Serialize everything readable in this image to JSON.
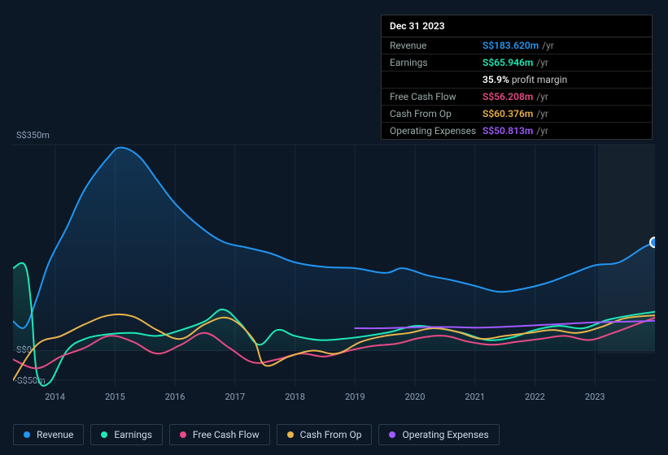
{
  "chart": {
    "type": "line-area",
    "background_color": "#0d1826",
    "gridline_color": "#1a2838",
    "currency_prefix": "S$",
    "x_axis": {
      "years": [
        "2014",
        "2015",
        "2016",
        "2017",
        "2018",
        "2019",
        "2020",
        "2021",
        "2022",
        "2023"
      ],
      "start_year": 2013.3,
      "end_year": 2024.0,
      "fontsize": 11,
      "label_color": "#8ea2b8"
    },
    "y_axis": {
      "ticks": [
        {
          "value": 350,
          "label": "S$350m"
        },
        {
          "value": 0,
          "label": "S$0"
        },
        {
          "value": -50,
          "label": "-S$50m"
        }
      ],
      "min": -60,
      "max": 350,
      "fontsize": 11,
      "label_color": "#8ea2b8"
    },
    "series": [
      {
        "key": "revenue",
        "label": "Revenue",
        "color": "#2196f3",
        "line_width": 2,
        "area_fill": true,
        "area_opacity_top": 0.22,
        "area_opacity_bottom": 0.02,
        "points": [
          {
            "x": 2013.3,
            "y": 50
          },
          {
            "x": 2013.5,
            "y": 40
          },
          {
            "x": 2013.7,
            "y": 90
          },
          {
            "x": 2013.9,
            "y": 150
          },
          {
            "x": 2014.2,
            "y": 210
          },
          {
            "x": 2014.5,
            "y": 275
          },
          {
            "x": 2014.9,
            "y": 330
          },
          {
            "x": 2015.1,
            "y": 345
          },
          {
            "x": 2015.4,
            "y": 330
          },
          {
            "x": 2015.7,
            "y": 290
          },
          {
            "x": 2016.0,
            "y": 250
          },
          {
            "x": 2016.4,
            "y": 212
          },
          {
            "x": 2016.8,
            "y": 185
          },
          {
            "x": 2017.2,
            "y": 175
          },
          {
            "x": 2017.6,
            "y": 165
          },
          {
            "x": 2018.0,
            "y": 150
          },
          {
            "x": 2018.5,
            "y": 142
          },
          {
            "x": 2019.0,
            "y": 140
          },
          {
            "x": 2019.5,
            "y": 132
          },
          {
            "x": 2019.8,
            "y": 140
          },
          {
            "x": 2020.2,
            "y": 128
          },
          {
            "x": 2020.6,
            "y": 120
          },
          {
            "x": 2021.0,
            "y": 110
          },
          {
            "x": 2021.4,
            "y": 100
          },
          {
            "x": 2021.8,
            "y": 105
          },
          {
            "x": 2022.2,
            "y": 115
          },
          {
            "x": 2022.6,
            "y": 130
          },
          {
            "x": 2023.0,
            "y": 145
          },
          {
            "x": 2023.4,
            "y": 150
          },
          {
            "x": 2023.8,
            "y": 175
          },
          {
            "x": 2024.0,
            "y": 184
          }
        ]
      },
      {
        "key": "earnings",
        "label": "Earnings",
        "color": "#1de9b6",
        "line_width": 2,
        "area_fill": true,
        "area_opacity_top": 0.18,
        "area_opacity_bottom": 0.0,
        "points": [
          {
            "x": 2013.3,
            "y": 140
          },
          {
            "x": 2013.5,
            "y": 145
          },
          {
            "x": 2013.6,
            "y": 80
          },
          {
            "x": 2013.7,
            "y": -40
          },
          {
            "x": 2013.9,
            "y": -55
          },
          {
            "x": 2014.2,
            "y": 0
          },
          {
            "x": 2014.5,
            "y": 20
          },
          {
            "x": 2014.9,
            "y": 28
          },
          {
            "x": 2015.3,
            "y": 30
          },
          {
            "x": 2015.7,
            "y": 25
          },
          {
            "x": 2016.1,
            "y": 35
          },
          {
            "x": 2016.5,
            "y": 50
          },
          {
            "x": 2016.8,
            "y": 70
          },
          {
            "x": 2017.1,
            "y": 45
          },
          {
            "x": 2017.4,
            "y": 10
          },
          {
            "x": 2017.7,
            "y": 35
          },
          {
            "x": 2018.0,
            "y": 25
          },
          {
            "x": 2018.4,
            "y": 18
          },
          {
            "x": 2018.8,
            "y": 20
          },
          {
            "x": 2019.2,
            "y": 25
          },
          {
            "x": 2019.6,
            "y": 32
          },
          {
            "x": 2020.0,
            "y": 42
          },
          {
            "x": 2020.4,
            "y": 38
          },
          {
            "x": 2020.8,
            "y": 30
          },
          {
            "x": 2021.2,
            "y": 18
          },
          {
            "x": 2021.6,
            "y": 22
          },
          {
            "x": 2022.0,
            "y": 35
          },
          {
            "x": 2022.4,
            "y": 42
          },
          {
            "x": 2022.8,
            "y": 38
          },
          {
            "x": 2023.2,
            "y": 52
          },
          {
            "x": 2023.6,
            "y": 60
          },
          {
            "x": 2024.0,
            "y": 66
          }
        ]
      },
      {
        "key": "fcf",
        "label": "Free Cash Flow",
        "color": "#e94b86",
        "line_width": 2,
        "area_fill": false,
        "points": [
          {
            "x": 2013.3,
            "y": -15
          },
          {
            "x": 2013.7,
            "y": -30
          },
          {
            "x": 2014.1,
            "y": -10
          },
          {
            "x": 2014.5,
            "y": 5
          },
          {
            "x": 2014.9,
            "y": 25
          },
          {
            "x": 2015.3,
            "y": 15
          },
          {
            "x": 2015.7,
            "y": -5
          },
          {
            "x": 2016.1,
            "y": 10
          },
          {
            "x": 2016.5,
            "y": 30
          },
          {
            "x": 2016.9,
            "y": 5
          },
          {
            "x": 2017.3,
            "y": -20
          },
          {
            "x": 2017.7,
            "y": -15
          },
          {
            "x": 2018.1,
            "y": -5
          },
          {
            "x": 2018.5,
            "y": -10
          },
          {
            "x": 2018.9,
            "y": 0
          },
          {
            "x": 2019.3,
            "y": 8
          },
          {
            "x": 2019.7,
            "y": 12
          },
          {
            "x": 2020.1,
            "y": 22
          },
          {
            "x": 2020.5,
            "y": 25
          },
          {
            "x": 2020.9,
            "y": 15
          },
          {
            "x": 2021.3,
            "y": 10
          },
          {
            "x": 2021.7,
            "y": 15
          },
          {
            "x": 2022.1,
            "y": 20
          },
          {
            "x": 2022.5,
            "y": 25
          },
          {
            "x": 2022.9,
            "y": 18
          },
          {
            "x": 2023.3,
            "y": 30
          },
          {
            "x": 2023.7,
            "y": 45
          },
          {
            "x": 2024.0,
            "y": 56
          }
        ]
      },
      {
        "key": "cfo",
        "label": "Cash From Op",
        "color": "#e9b34b",
        "line_width": 2,
        "area_fill": false,
        "points": [
          {
            "x": 2013.3,
            "y": -50
          },
          {
            "x": 2013.7,
            "y": 10
          },
          {
            "x": 2014.1,
            "y": 25
          },
          {
            "x": 2014.5,
            "y": 45
          },
          {
            "x": 2014.9,
            "y": 60
          },
          {
            "x": 2015.3,
            "y": 58
          },
          {
            "x": 2015.7,
            "y": 35
          },
          {
            "x": 2016.1,
            "y": 20
          },
          {
            "x": 2016.5,
            "y": 45
          },
          {
            "x": 2016.9,
            "y": 55
          },
          {
            "x": 2017.3,
            "y": 20
          },
          {
            "x": 2017.5,
            "y": -25
          },
          {
            "x": 2017.9,
            "y": -10
          },
          {
            "x": 2018.3,
            "y": 0
          },
          {
            "x": 2018.7,
            "y": -5
          },
          {
            "x": 2019.1,
            "y": 15
          },
          {
            "x": 2019.5,
            "y": 25
          },
          {
            "x": 2019.9,
            "y": 30
          },
          {
            "x": 2020.3,
            "y": 38
          },
          {
            "x": 2020.7,
            "y": 32
          },
          {
            "x": 2021.1,
            "y": 20
          },
          {
            "x": 2021.5,
            "y": 25
          },
          {
            "x": 2021.9,
            "y": 30
          },
          {
            "x": 2022.3,
            "y": 35
          },
          {
            "x": 2022.7,
            "y": 30
          },
          {
            "x": 2023.1,
            "y": 40
          },
          {
            "x": 2023.5,
            "y": 55
          },
          {
            "x": 2024.0,
            "y": 60
          }
        ]
      },
      {
        "key": "opex",
        "label": "Operating Expenses",
        "color": "#a259ff",
        "line_width": 2,
        "area_fill": false,
        "points": [
          {
            "x": 2019.0,
            "y": 38
          },
          {
            "x": 2019.4,
            "y": 38
          },
          {
            "x": 2019.8,
            "y": 39
          },
          {
            "x": 2020.2,
            "y": 40
          },
          {
            "x": 2020.6,
            "y": 40
          },
          {
            "x": 2021.0,
            "y": 39
          },
          {
            "x": 2021.4,
            "y": 40
          },
          {
            "x": 2021.8,
            "y": 42
          },
          {
            "x": 2022.2,
            "y": 44
          },
          {
            "x": 2022.6,
            "y": 46
          },
          {
            "x": 2023.0,
            "y": 48
          },
          {
            "x": 2023.4,
            "y": 49
          },
          {
            "x": 2023.8,
            "y": 50
          },
          {
            "x": 2024.0,
            "y": 51
          }
        ]
      }
    ],
    "hover_marker": {
      "x": 2024.0,
      "series_key": "revenue",
      "color": "#2196f3",
      "ring": "#fff"
    }
  },
  "tooltip": {
    "date": "Dec 31 2023",
    "unit": "/yr",
    "rows": [
      {
        "label": "Revenue",
        "value": "S$183.620m",
        "color": "#2196f3"
      },
      {
        "label": "Earnings",
        "value": "S$65.946m",
        "color": "#1de9b6",
        "sub_value": "35.9%",
        "sub_label": "profit margin"
      },
      {
        "label": "Free Cash Flow",
        "value": "S$56.208m",
        "color": "#e94b86"
      },
      {
        "label": "Cash From Op",
        "value": "S$60.376m",
        "color": "#e9b34b"
      },
      {
        "label": "Operating Expenses",
        "value": "S$50.813m",
        "color": "#a259ff"
      }
    ]
  },
  "legend": [
    {
      "label": "Revenue",
      "color": "#2196f3"
    },
    {
      "label": "Earnings",
      "color": "#1de9b6"
    },
    {
      "label": "Free Cash Flow",
      "color": "#e94b86"
    },
    {
      "label": "Cash From Op",
      "color": "#e9b34b"
    },
    {
      "label": "Operating Expenses",
      "color": "#a259ff"
    }
  ]
}
